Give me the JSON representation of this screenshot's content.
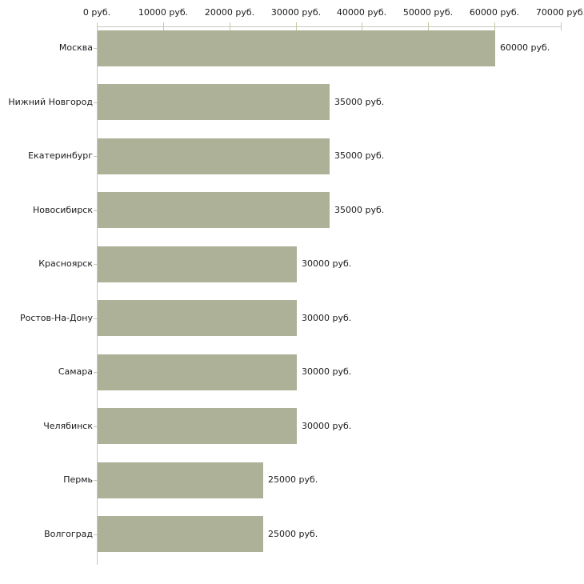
{
  "chart_data": {
    "type": "bar",
    "orientation": "horizontal",
    "title": "",
    "xlabel": "",
    "ylabel": "",
    "unit": "руб.",
    "xlim": [
      0,
      70000
    ],
    "grid": false,
    "legend": "none",
    "categories": [
      "Москва",
      "Нижний Новгород",
      "Екатеринбург",
      "Новосибирск",
      "Красноярск",
      "Ростов-На-Дону",
      "Самара",
      "Челябинск",
      "Пермь",
      "Волгоград"
    ],
    "values": [
      60000,
      35000,
      35000,
      35000,
      30000,
      30000,
      30000,
      30000,
      25000,
      25000
    ],
    "bar_labels": [
      "60000 руб.",
      "35000 руб.",
      "35000 руб.",
      "35000 руб.",
      "30000 руб.",
      "30000 руб.",
      "30000 руб.",
      "30000 руб.",
      "25000 руб.",
      "25000 руб."
    ],
    "x_ticks": [
      {
        "value": 0,
        "label": "0 руб."
      },
      {
        "value": 10000,
        "label": "10000 руб."
      },
      {
        "value": 20000,
        "label": "20000 руб."
      },
      {
        "value": 30000,
        "label": "30000 руб."
      },
      {
        "value": 40000,
        "label": "40000 руб."
      },
      {
        "value": 50000,
        "label": "50000 руб."
      },
      {
        "value": 60000,
        "label": "60000 руб."
      },
      {
        "value": 70000,
        "label": "70000 руб."
      }
    ],
    "colors": {
      "bar": "#acb198",
      "plot_border": "#c6c6c6",
      "tick": "#c9c9a0",
      "text": "#1a1a1a",
      "background": "#ffffff"
    }
  }
}
